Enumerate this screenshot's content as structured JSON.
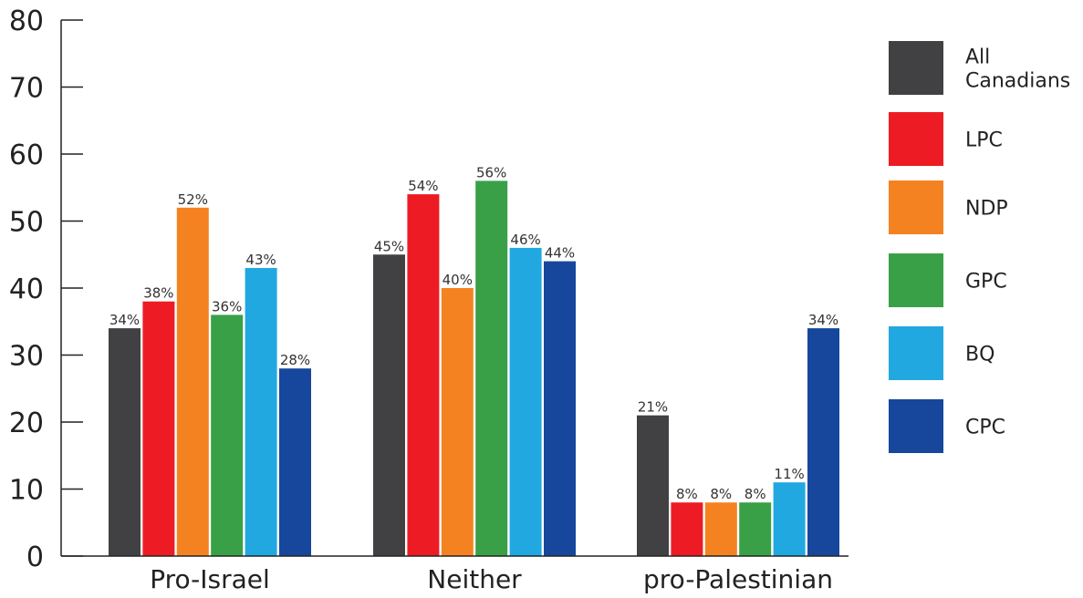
{
  "chart_data": {
    "type": "bar",
    "categories": [
      "Pro-Israel",
      "Neither",
      "pro-Palestinian"
    ],
    "series": [
      {
        "name": "All Canadians",
        "color": "#414042",
        "values": [
          34,
          45,
          21
        ],
        "labels": [
          "34%",
          "45%",
          "21%"
        ]
      },
      {
        "name": "LPC",
        "color": "#ed1c24",
        "values": [
          38,
          54,
          8
        ],
        "labels": [
          "38%",
          "54%",
          "8%"
        ]
      },
      {
        "name": "NDP",
        "color": "#f58220",
        "values": [
          52,
          40,
          8
        ],
        "labels": [
          "52%",
          "40%",
          "8%"
        ]
      },
      {
        "name": "GPC",
        "color": "#3aa047",
        "values": [
          36,
          56,
          8
        ],
        "labels": [
          "36%",
          "56%",
          "8%"
        ]
      },
      {
        "name": "BQ",
        "color": "#22a8e0",
        "values": [
          43,
          46,
          11
        ],
        "labels": [
          "43%",
          "46%",
          "11%"
        ]
      },
      {
        "name": "CPC",
        "color": "#16479c",
        "values": [
          28,
          44,
          34
        ],
        "labels": [
          "28%",
          "44%",
          "34%"
        ]
      }
    ],
    "ylim": [
      0,
      80
    ],
    "yticks": [
      "0",
      "10",
      "20",
      "30",
      "40",
      "50",
      "60",
      "70",
      "80"
    ],
    "legend_position": "right",
    "grid": false
  }
}
